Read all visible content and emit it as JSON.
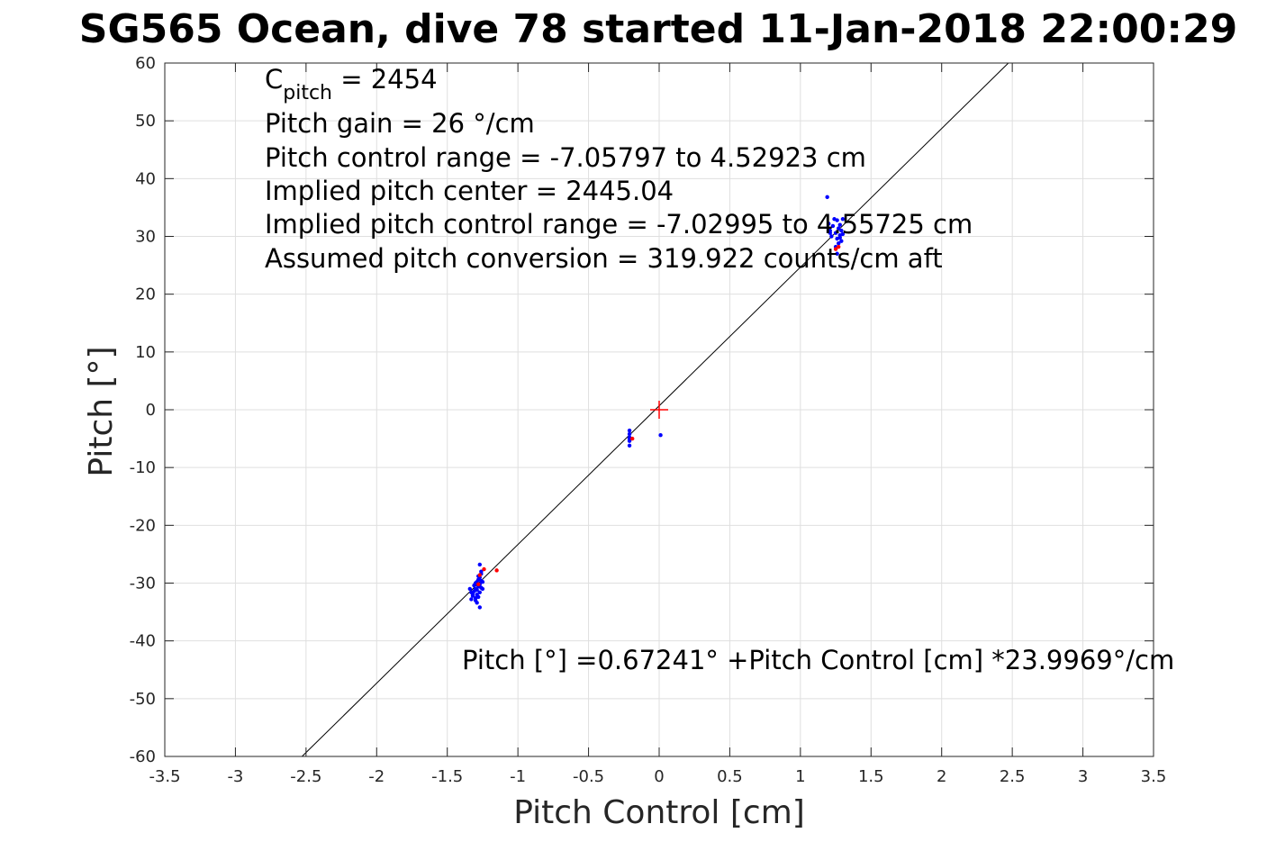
{
  "chart_data": {
    "type": "scatter",
    "title": "SG565 Ocean, dive 78 started 11-Jan-2018 22:00:29",
    "xlabel": "Pitch Control [cm]",
    "ylabel": "Pitch [°]",
    "xlim": [
      -3.5,
      3.5
    ],
    "ylim": [
      -60,
      60
    ],
    "xticks": [
      -3.5,
      -3,
      -2.5,
      -2,
      -1.5,
      -1,
      -0.5,
      0,
      0.5,
      1,
      1.5,
      2,
      2.5,
      3,
      3.5
    ],
    "xtick_labels": [
      "-3.5",
      "-3",
      "-2.5",
      "-2",
      "-1.5",
      "-1",
      "-0.5",
      "0",
      "0.5",
      "1",
      "1.5",
      "2",
      "2.5",
      "3",
      "3.5"
    ],
    "yticks": [
      -60,
      -50,
      -40,
      -30,
      -20,
      -10,
      0,
      10,
      20,
      30,
      40,
      50,
      60
    ],
    "ytick_labels": [
      "-60",
      "-50",
      "-40",
      "-30",
      "-20",
      "-10",
      "0",
      "10",
      "20",
      "30",
      "40",
      "50",
      "60"
    ],
    "grid": true,
    "fit_line": {
      "intercept": 0.67241,
      "slope": 23.9969
    },
    "center_marker": {
      "x": 0,
      "y": 0,
      "color": "#ff0000"
    },
    "series": [
      {
        "color": "#0000ff",
        "points": [
          [
            -1.34,
            -31.0
          ],
          [
            -1.33,
            -31.6
          ],
          [
            -1.32,
            -32.2
          ],
          [
            -1.31,
            -31.4
          ],
          [
            -1.3,
            -32.6
          ],
          [
            -1.33,
            -32.8
          ],
          [
            -1.31,
            -30.4
          ],
          [
            -1.3,
            -30.0
          ],
          [
            -1.29,
            -31.2
          ],
          [
            -1.29,
            -32.0
          ],
          [
            -1.28,
            -30.6
          ],
          [
            -1.28,
            -29.4
          ],
          [
            -1.28,
            -28.8
          ],
          [
            -1.27,
            -30.2
          ],
          [
            -1.27,
            -31.6
          ],
          [
            -1.27,
            -29.0
          ],
          [
            -1.26,
            -28.4
          ],
          [
            -1.26,
            -30.8
          ],
          [
            -1.3,
            -33.0
          ],
          [
            -1.29,
            -33.4
          ],
          [
            -1.27,
            -34.2
          ],
          [
            -1.26,
            -29.6
          ],
          [
            -1.26,
            -28.0
          ],
          [
            -1.27,
            -26.8
          ],
          [
            -1.25,
            -29.8
          ],
          [
            -1.25,
            -31.0
          ],
          [
            -1.28,
            -32.4
          ],
          [
            -1.32,
            -31.8
          ],
          [
            -1.3,
            -31.0
          ],
          [
            -1.29,
            -29.8
          ],
          [
            -0.21,
            -3.6
          ],
          [
            -0.21,
            -4.2
          ],
          [
            -0.21,
            -4.8
          ],
          [
            -0.21,
            -5.4
          ],
          [
            -0.21,
            -6.2
          ],
          [
            -0.21,
            -5.0
          ],
          [
            0.01,
            -4.4
          ],
          [
            1.19,
            36.8
          ],
          [
            1.2,
            32.2
          ],
          [
            1.21,
            31.0
          ],
          [
            1.22,
            30.0
          ],
          [
            1.23,
            31.8
          ],
          [
            1.24,
            33.0
          ],
          [
            1.25,
            30.6
          ],
          [
            1.26,
            32.8
          ],
          [
            1.26,
            29.6
          ],
          [
            1.27,
            31.4
          ],
          [
            1.27,
            28.8
          ],
          [
            1.28,
            30.2
          ],
          [
            1.28,
            32.0
          ],
          [
            1.29,
            31.0
          ],
          [
            1.29,
            29.2
          ],
          [
            1.3,
            30.4
          ],
          [
            1.3,
            33.0
          ],
          [
            1.25,
            28.2
          ],
          [
            1.26,
            27.0
          ],
          [
            1.21,
            30.6
          ],
          [
            1.28,
            29.8
          ]
        ]
      },
      {
        "color": "#ff0000",
        "points": [
          [
            -1.24,
            -27.6
          ],
          [
            -1.15,
            -27.8
          ],
          [
            -1.27,
            -28.6
          ],
          [
            -1.28,
            -30.2
          ],
          [
            -0.19,
            -5.0
          ],
          [
            1.25,
            27.8
          ],
          [
            1.27,
            28.2
          ]
        ]
      }
    ],
    "annotations": {
      "cpitch_base": "C",
      "cpitch_sub": "pitch",
      "cpitch_value": " = 2454",
      "pitch_gain": "Pitch gain = 26 °/cm",
      "control_range": "Pitch control range = -7.05797 to 4.52923 cm",
      "implied_center": "Implied pitch center = 2445.04",
      "implied_range": "Implied pitch control range = -7.02995 to 4.55725 cm",
      "conversion": "Assumed pitch conversion = 319.922 counts/cm aft",
      "fit_equation": "Pitch [°] =0.67241° +Pitch Control [cm] *23.9969°/cm"
    }
  }
}
